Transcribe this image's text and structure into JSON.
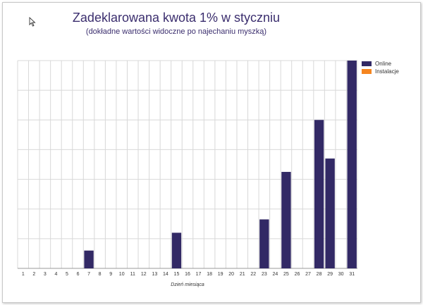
{
  "colors": {
    "online": "#322965",
    "instalacje": "#f5851f",
    "grid": "#d8d8d8",
    "axis": "#999999"
  },
  "cursor_icon": "arrow-cursor-icon",
  "chart_data": {
    "type": "bar",
    "title": "Zadeklarowana kwota 1% w styczniu",
    "subtitle": "(dokładne wartości widoczne po najechaniu myszką)",
    "xlabel": "Dzień miesiąca",
    "ylabel": "",
    "categories": [
      "1",
      "2",
      "3",
      "4",
      "5",
      "6",
      "7",
      "8",
      "9",
      "10",
      "11",
      "12",
      "13",
      "14",
      "15",
      "16",
      "17",
      "18",
      "19",
      "20",
      "21",
      "22",
      "23",
      "24",
      "25",
      "26",
      "27",
      "28",
      "29",
      "30",
      "31"
    ],
    "series": [
      {
        "name": "Online",
        "color": "#322965",
        "values": [
          0,
          0,
          0,
          0,
          0,
          0,
          0.6,
          0,
          0,
          0,
          0,
          0,
          0,
          0,
          1.2,
          0,
          0,
          0,
          0,
          0,
          0,
          0,
          1.65,
          0,
          3.25,
          0,
          0,
          5.0,
          3.7,
          0,
          7.0
        ]
      },
      {
        "name": "Instalacje",
        "color": "#f5851f",
        "values": [
          0,
          0,
          0,
          0,
          0,
          0,
          0,
          0,
          0,
          0,
          0,
          0,
          0,
          0,
          0,
          0,
          0,
          0,
          0,
          0,
          0,
          0,
          0,
          0,
          0,
          0,
          0,
          0,
          0,
          0,
          0
        ]
      }
    ],
    "ylim": [
      0,
      7
    ],
    "y_ticks_labeled": false,
    "grid": true,
    "legend": "top-right"
  }
}
